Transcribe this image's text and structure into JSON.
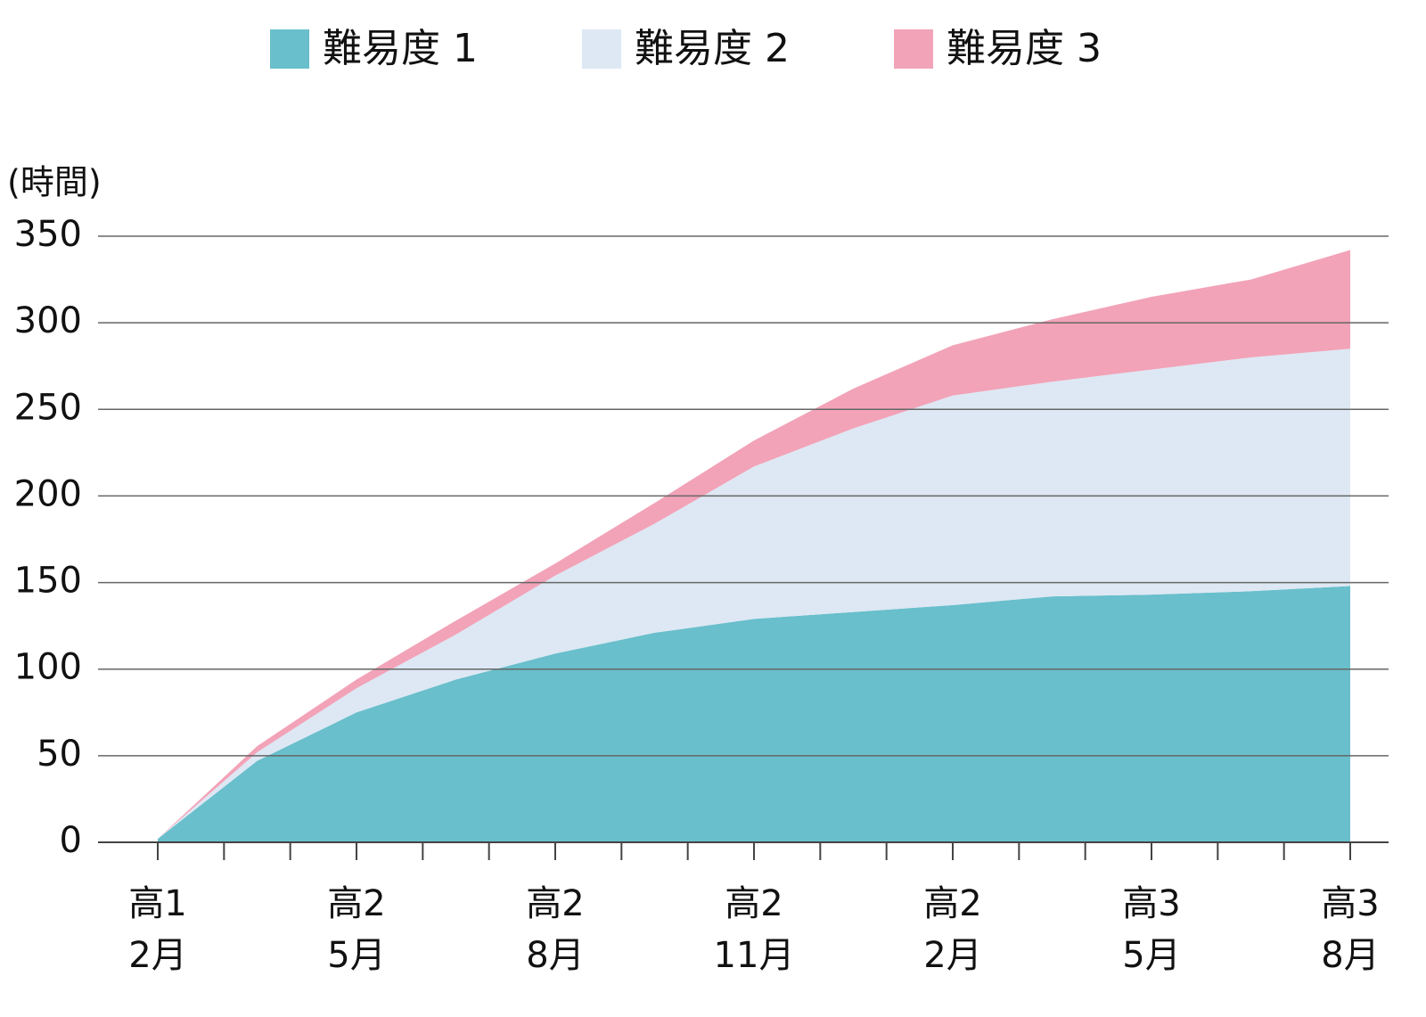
{
  "chart_data": {
    "type": "stacked_area",
    "y_label": "(時間)",
    "categories": [
      "高1\n2月",
      null,
      "高2\n5月",
      null,
      "高2\n8月",
      null,
      "高2\n11月",
      null,
      "高2\n2月",
      null,
      "高3\n5月",
      null,
      "高3\n8月"
    ],
    "series": [
      {
        "name": "難易度 1",
        "color": "#69bfcb",
        "values": [
          2,
          47,
          75,
          94,
          109,
          121,
          129,
          133,
          137,
          142,
          143,
          145,
          148
        ]
      },
      {
        "name": "難易度 2",
        "color": "#dde8f4",
        "values": [
          0,
          5,
          14,
          26,
          45,
          63,
          88,
          106,
          121,
          124,
          130,
          135,
          137
        ]
      },
      {
        "name": "難易度 3",
        "color": "#f2a3b8",
        "values": [
          0,
          3.5,
          5,
          8,
          7,
          12,
          15,
          23,
          29,
          36,
          42,
          45,
          57
        ]
      }
    ],
    "ylim": [
      0,
      350
    ],
    "yticks": [
      0,
      50,
      100,
      150,
      200,
      250,
      300,
      350
    ],
    "grid": true,
    "legend": "top"
  }
}
